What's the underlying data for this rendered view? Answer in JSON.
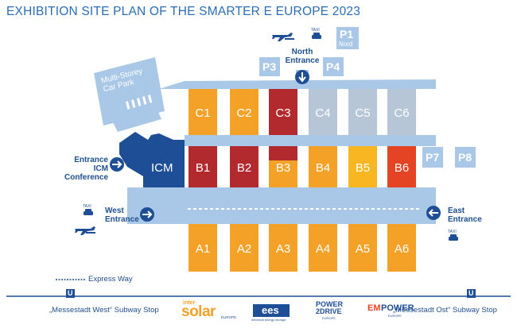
{
  "title": "EXHIBITION SITE PLAN OF THE SMARTER E EUROPE 2023",
  "colors": {
    "hall_blue": "#a9c8e8",
    "dark_blue": "#1e4f96",
    "mid_blue": "#4f86c6",
    "orange": "#f4a128",
    "yellow": "#f8b722",
    "dark_red": "#b22a2e",
    "red": "#e54424",
    "grey": "#b7c6d6"
  },
  "halls": [
    {
      "label": "C1",
      "color": "orange"
    },
    {
      "label": "C2",
      "color": "orange"
    },
    {
      "label": "C3",
      "color": "dark_red"
    },
    {
      "label": "C4",
      "color": "grey"
    },
    {
      "label": "C5",
      "color": "grey"
    },
    {
      "label": "C6",
      "color": "grey"
    },
    {
      "label": "B1",
      "color": "dark_red"
    },
    {
      "label": "B2",
      "color": "dark_red"
    },
    {
      "label": "B3",
      "color": "orange"
    },
    {
      "label": "B4",
      "color": "orange"
    },
    {
      "label": "B5",
      "color": "yellow"
    },
    {
      "label": "B6",
      "color": "red"
    },
    {
      "label": "A1",
      "color": "orange"
    },
    {
      "label": "A2",
      "color": "orange"
    },
    {
      "label": "A3",
      "color": "orange"
    },
    {
      "label": "A4",
      "color": "orange"
    },
    {
      "label": "A5",
      "color": "orange"
    },
    {
      "label": "A6",
      "color": "orange"
    }
  ],
  "icm": "ICM",
  "parking": {
    "p1": "P1",
    "p1_sub": "Nord",
    "p3": "P3",
    "p4": "P4",
    "p7": "P7",
    "p8": "P8"
  },
  "car_park": "Multi-Storey Car Park",
  "entrances": {
    "north": "North Entrance",
    "west": "West Entrance",
    "east": "East Entrance",
    "icm": "Entrance ICM Conference"
  },
  "icons": {
    "taxi": "TAXI",
    "airport": "airplane-icon",
    "subway": "U"
  },
  "express_way": "Express Way",
  "subway_west": "„Messestadt West“ Subway Stop",
  "subway_east": "„Messestadt Ost“ Subway Stop",
  "logos": {
    "intersolar_top": "inter",
    "intersolar_main": "solar",
    "intersolar_sub": "EUROPE",
    "ees_main": "ees",
    "ees_sub": "electrical energy storage",
    "pd_line1": "POWER",
    "pd_line2": "2DRIVE",
    "pd_sub": "EUROPE",
    "em_main_a": "EM",
    "em_main_b": "POWER",
    "em_sub": "EUROPE"
  }
}
